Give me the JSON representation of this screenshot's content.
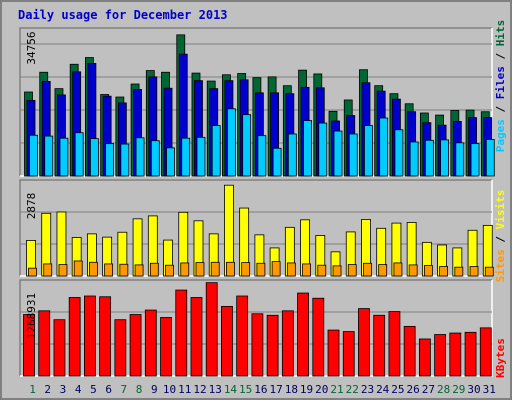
{
  "title": "Daily usage for December 2013",
  "colors": {
    "hits": "#006633",
    "files": "#0000cc",
    "pages": "#00ccff",
    "visits": "#ff9900",
    "sites": "#ffff00",
    "kbytes": "#ff0000",
    "weekend_label": "#006633",
    "weekday_label": "#000066"
  },
  "chart_data": [
    {
      "type": "bar",
      "title": "Daily usage for December 2013",
      "categories": [
        "1",
        "2",
        "3",
        "4",
        "5",
        "6",
        "7",
        "8",
        "9",
        "10",
        "11",
        "12",
        "13",
        "14",
        "15",
        "16",
        "17",
        "18",
        "19",
        "20",
        "21",
        "22",
        "23",
        "24",
        "25",
        "26",
        "27",
        "28",
        "29",
        "30",
        "31"
      ],
      "weekend_days": [
        "1",
        "7",
        "8",
        "14",
        "15",
        "21",
        "22",
        "28",
        "29"
      ],
      "ymax_label": "34756",
      "ylim": [
        0,
        34756
      ],
      "legend": [
        "Hits",
        "Files",
        "Pages"
      ],
      "series": [
        {
          "name": "Hits",
          "values": [
            20000,
            24700,
            20800,
            26600,
            28200,
            19400,
            18800,
            21900,
            25100,
            24700,
            33600,
            24500,
            22600,
            24100,
            24400,
            23400,
            23600,
            21500,
            25200,
            24300,
            15400,
            18100,
            25300,
            21500,
            19600,
            17200,
            15000,
            14500,
            15600,
            15700,
            15300
          ]
        },
        {
          "name": "Files",
          "values": [
            18000,
            22500,
            19300,
            24800,
            26800,
            19000,
            17400,
            20600,
            23600,
            20900,
            29000,
            22700,
            20800,
            22700,
            22900,
            19800,
            19800,
            19600,
            21100,
            21000,
            13100,
            14400,
            22200,
            20200,
            18300,
            15300,
            12700,
            12100,
            13000,
            13900,
            13900
          ]
        },
        {
          "name": "Pages",
          "values": [
            9700,
            9500,
            9000,
            10300,
            8900,
            7700,
            7600,
            9100,
            8400,
            6700,
            9000,
            9200,
            12000,
            16000,
            14600,
            9600,
            6600,
            10000,
            13200,
            12600,
            10700,
            10000,
            12000,
            13800,
            11000,
            8100,
            8500,
            8600,
            7900,
            7700,
            8700
          ]
        }
      ]
    },
    {
      "type": "bar",
      "categories": [
        "1",
        "2",
        "3",
        "4",
        "5",
        "6",
        "7",
        "8",
        "9",
        "10",
        "11",
        "12",
        "13",
        "14",
        "15",
        "16",
        "17",
        "18",
        "19",
        "20",
        "21",
        "22",
        "23",
        "24",
        "25",
        "26",
        "27",
        "28",
        "29",
        "30",
        "31"
      ],
      "ymax_label": "2878",
      "ylim": [
        0,
        2878
      ],
      "legend": [
        "Sites",
        "Visits"
      ],
      "series": [
        {
          "name": "Sites",
          "values": [
            1090,
            1920,
            1960,
            1180,
            1290,
            1190,
            1340,
            1750,
            1840,
            1100,
            1950,
            1690,
            1290,
            2780,
            2080,
            1260,
            860,
            1490,
            1720,
            1240,
            740,
            1350,
            1730,
            1460,
            1620,
            1640,
            1030,
            950,
            860,
            1400,
            1550
          ]
        },
        {
          "name": "Visits",
          "values": [
            240,
            370,
            350,
            460,
            420,
            370,
            360,
            340,
            390,
            330,
            400,
            410,
            420,
            420,
            410,
            390,
            440,
            400,
            370,
            330,
            310,
            350,
            390,
            350,
            400,
            340,
            320,
            290,
            270,
            290,
            270
          ]
        }
      ]
    },
    {
      "type": "bar",
      "categories": [
        "1",
        "2",
        "3",
        "4",
        "5",
        "6",
        "7",
        "8",
        "9",
        "10",
        "11",
        "12",
        "13",
        "14",
        "15",
        "16",
        "17",
        "18",
        "19",
        "20",
        "21",
        "22",
        "23",
        "24",
        "25",
        "26",
        "27",
        "28",
        "29",
        "30",
        "31"
      ],
      "ymax_label": "1268931",
      "ylim": [
        0,
        1268931
      ],
      "legend": [
        "KBytes"
      ],
      "series": [
        {
          "name": "KBytes",
          "values": [
            830000,
            880000,
            760000,
            1060000,
            1080000,
            1070000,
            760000,
            830000,
            890000,
            790000,
            1160000,
            1060000,
            1260000,
            940000,
            1080000,
            840000,
            820000,
            880000,
            1120000,
            1050000,
            620000,
            600000,
            910000,
            820000,
            870000,
            670000,
            500000,
            560000,
            580000,
            590000,
            650000
          ]
        }
      ]
    }
  ]
}
